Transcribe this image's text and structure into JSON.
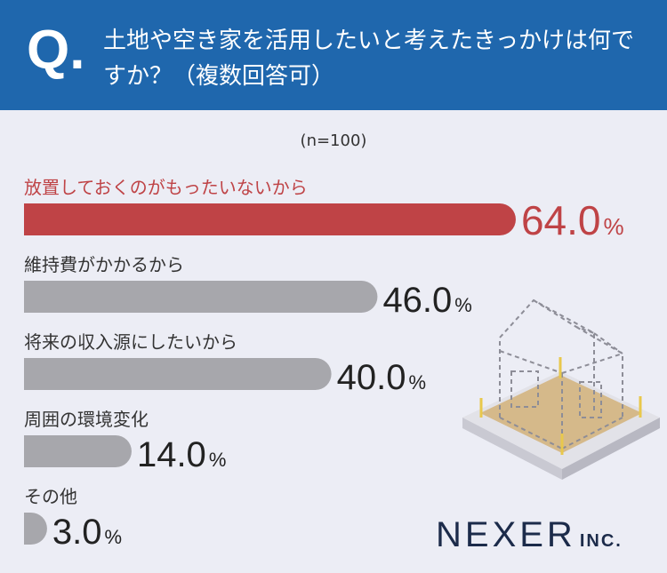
{
  "header": {
    "q_mark": "Q.",
    "question": "土地や空き家を活用したいと考えたきっかけは何ですか？（複数回答可）"
  },
  "n_label": "(n=100)",
  "colors": {
    "header_bg": "#1f67ad",
    "highlight": "#bf4346",
    "bar": "#a7a7ac",
    "background": "#ecedf5"
  },
  "chart_data": {
    "type": "bar",
    "orientation": "horizontal",
    "categories": [
      "放置しておくのがもったいないから",
      "維持費がかかるから",
      "将来の収入源にしたいから",
      "周囲の環境変化",
      "その他"
    ],
    "values": [
      64.0,
      46.0,
      40.0,
      14.0,
      3.0
    ],
    "value_labels": [
      "64.0",
      "46.0",
      "40.0",
      "14.0",
      "3.0"
    ],
    "unit": "%",
    "highlight_index": 0
  },
  "logo": {
    "main": "NEXER",
    "sub": "INC."
  }
}
